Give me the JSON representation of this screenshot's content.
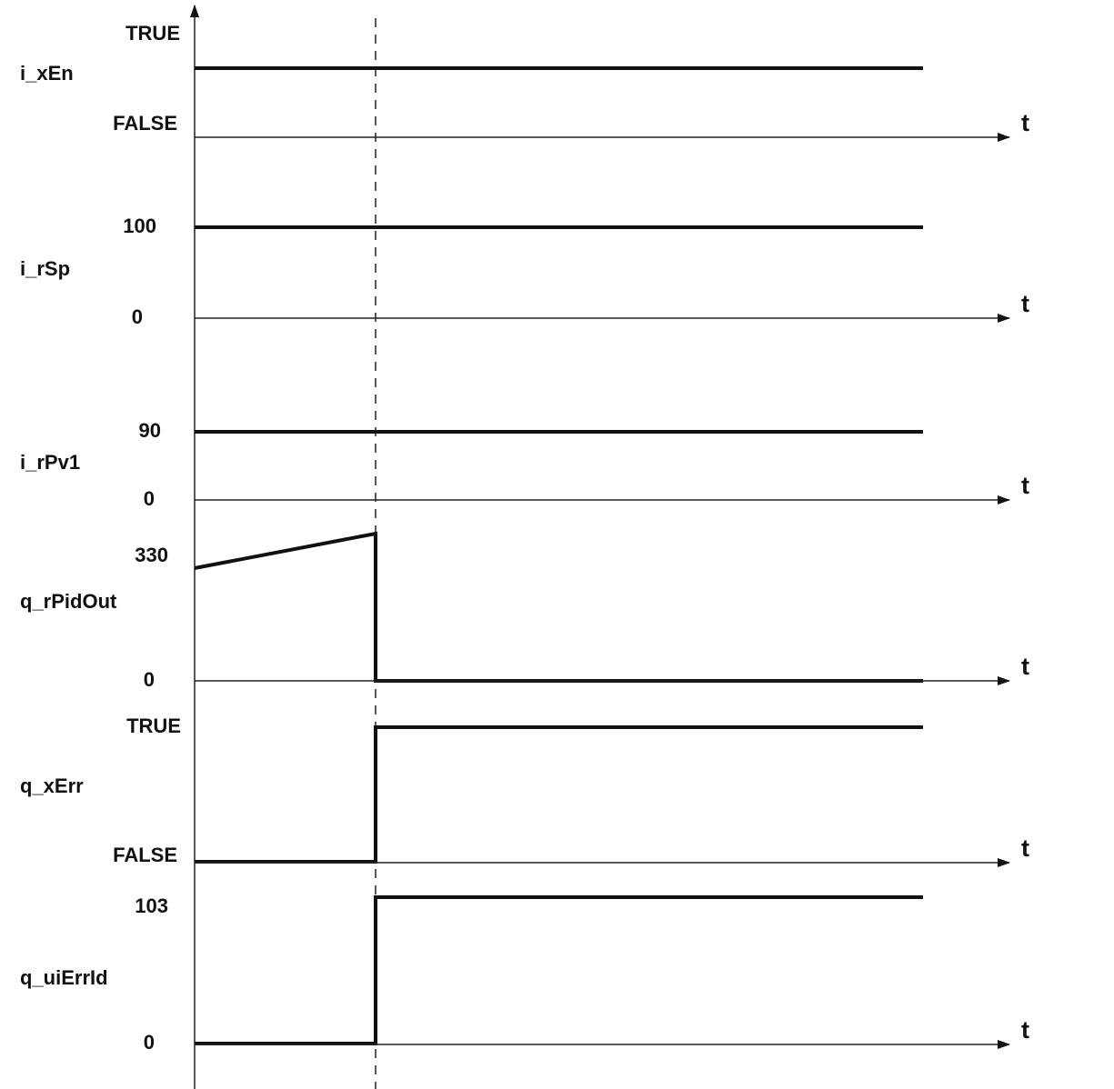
{
  "signals": [
    {
      "name": "i_xEn",
      "high": "TRUE",
      "low": "FALSE"
    },
    {
      "name": "i_rSp",
      "high": "100",
      "low": "0"
    },
    {
      "name": "i_rPv1",
      "high": "90",
      "low": "0"
    },
    {
      "name": "q_rPidOut",
      "high": "330",
      "low": "0"
    },
    {
      "name": "q_xErr",
      "high": "TRUE",
      "low": "FALSE"
    },
    {
      "name": "q_uiErrId",
      "high": "103",
      "low": "0"
    }
  ],
  "time_axis_label": "t"
}
